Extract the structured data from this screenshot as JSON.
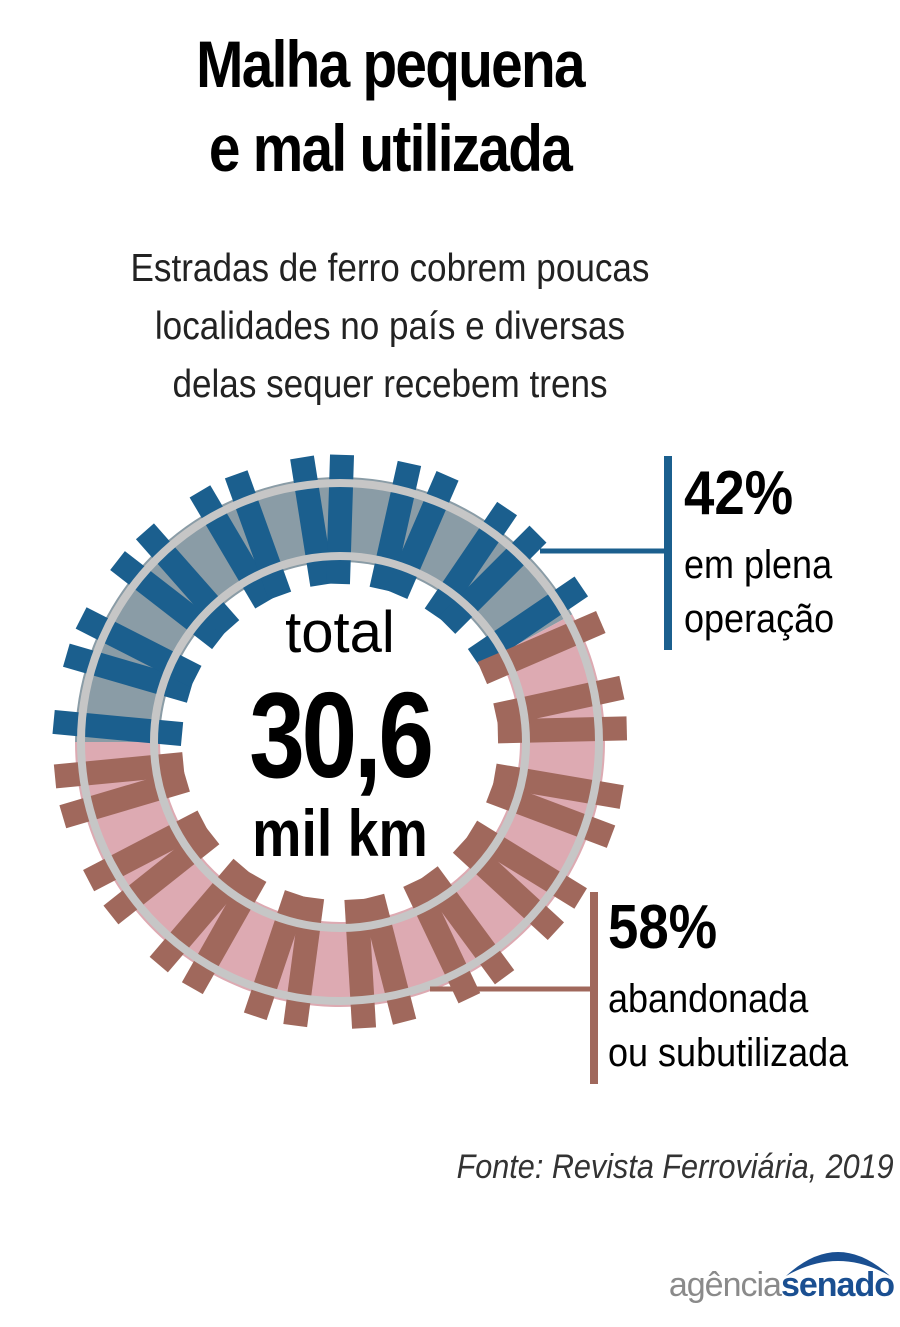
{
  "title": [
    "Malha pequena",
    "e mal utilizada"
  ],
  "subtitle": [
    "Estradas de ferro cobrem poucas",
    "localidades no país e diversas",
    "delas sequer recebem trens"
  ],
  "chart_data": {
    "type": "pie",
    "categories": [
      "em plena operação",
      "abandonada ou subutilizada"
    ],
    "values": [
      42,
      58
    ],
    "unit": "%",
    "total": {
      "word": "total",
      "value": "30,6",
      "unit": "mil km"
    }
  },
  "callouts": [
    {
      "pct": "42%",
      "label": [
        "em plena",
        "operação"
      ]
    },
    {
      "pct": "58%",
      "label": [
        "abandonada",
        "ou subutilizada"
      ]
    }
  ],
  "colors": {
    "operation_fill": "#8a9ca6",
    "operation_tie": "#1b5f8e",
    "abandoned_fill": "#ddaab2",
    "abandoned_tie": "#a0685c",
    "rail": "#c6c6c6"
  },
  "source": "Fonte: Revista Ferroviária, 2019",
  "logo": {
    "part1": "agência",
    "part2": "senado"
  }
}
